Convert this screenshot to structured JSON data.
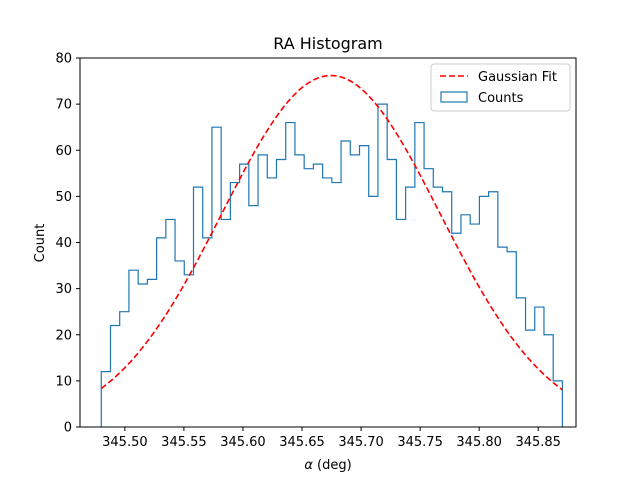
{
  "chart_data": {
    "type": "histogram",
    "title": "RA Histogram",
    "xlabel_symbol": "α",
    "xlabel_rest": " (deg)",
    "ylabel": "Count",
    "xlim": [
      345.462,
      345.882
    ],
    "ylim": [
      0,
      80
    ],
    "xticks": [
      345.5,
      345.55,
      345.6,
      345.65,
      345.7,
      345.75,
      345.8,
      345.85
    ],
    "xtick_labels": [
      "345.50",
      "345.55",
      "345.60",
      "345.65",
      "345.70",
      "345.75",
      "345.80",
      "345.85"
    ],
    "yticks": [
      0,
      10,
      20,
      30,
      40,
      50,
      60,
      70,
      80
    ],
    "ytick_labels": [
      "0",
      "10",
      "20",
      "30",
      "40",
      "50",
      "60",
      "70",
      "80"
    ],
    "bins": {
      "start": 345.48,
      "end": 345.8705,
      "counts": [
        12,
        22,
        25,
        34,
        31,
        32,
        41,
        45,
        36,
        33,
        52,
        41,
        65,
        45,
        53,
        57,
        48,
        59,
        54,
        58,
        66,
        59,
        56,
        57,
        54,
        53,
        62,
        59,
        61,
        50,
        70,
        58,
        45,
        52,
        66,
        56,
        52,
        51,
        42,
        46,
        44,
        50,
        51,
        39,
        38,
        28,
        21,
        26,
        20,
        10
      ]
    },
    "series": [
      {
        "name": "Gaussian Fit",
        "kind": "line",
        "color": "#ff0000",
        "style": "dashed",
        "model": {
          "amplitude": 76.2,
          "mean": 345.6745,
          "sigma": 0.0925
        },
        "x_range": [
          345.48,
          345.8705
        ]
      },
      {
        "name": "Counts",
        "kind": "step",
        "color": "#1f77b4"
      }
    ],
    "legend": {
      "position": "top-right",
      "entries": [
        "Gaussian Fit",
        "Counts"
      ]
    }
  }
}
